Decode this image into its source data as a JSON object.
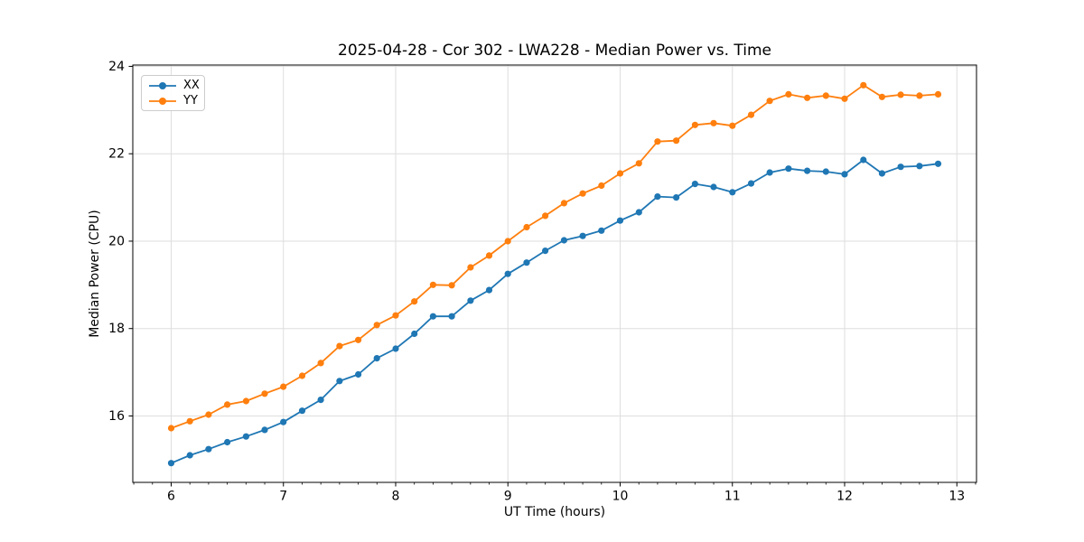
{
  "chart_data": {
    "type": "line",
    "title": "2025-04-28 - Cor 302 - LWA228 - Median Power vs. Time",
    "xlabel": "UT Time (hours)",
    "ylabel": "Median Power (CPU)",
    "xlim": [
      5.658,
      13.175
    ],
    "ylim": [
      14.48,
      24.03
    ],
    "x_major_ticks": [
      6,
      7,
      8,
      9,
      10,
      11,
      12,
      13
    ],
    "x_minor_tick_step_hours": 0.1667,
    "y_major_ticks": [
      16,
      18,
      20,
      22,
      24
    ],
    "grid": true,
    "grid_color": "#dedede",
    "legend_position": "upper left",
    "marker": "circle",
    "x": [
      6.0,
      6.167,
      6.333,
      6.5,
      6.667,
      6.833,
      7.0,
      7.167,
      7.333,
      7.5,
      7.667,
      7.833,
      8.0,
      8.167,
      8.333,
      8.5,
      8.667,
      8.833,
      9.0,
      9.167,
      9.333,
      9.5,
      9.667,
      9.833,
      10.0,
      10.167,
      10.333,
      10.5,
      10.667,
      10.833,
      11.0,
      11.167,
      11.333,
      11.5,
      11.667,
      11.833,
      12.0,
      12.167,
      12.333,
      12.5,
      12.667,
      12.833
    ],
    "series": [
      {
        "name": "XX",
        "color": "#1f77b4",
        "values": [
          14.92,
          15.1,
          15.24,
          15.4,
          15.53,
          15.68,
          15.86,
          16.12,
          16.37,
          16.8,
          16.95,
          17.32,
          17.54,
          17.88,
          18.28,
          18.28,
          18.64,
          18.88,
          19.25,
          19.51,
          19.78,
          20.02,
          20.12,
          20.24,
          20.47,
          20.66,
          21.02,
          21.0,
          21.31,
          21.24,
          21.12,
          21.32,
          21.57,
          21.66,
          21.61,
          21.59,
          21.53,
          21.86,
          21.55,
          21.7,
          21.72,
          21.77
        ]
      },
      {
        "name": "YY",
        "color": "#ff7f0e",
        "values": [
          15.72,
          15.88,
          16.03,
          16.26,
          16.34,
          16.51,
          16.67,
          16.92,
          17.21,
          17.6,
          17.74,
          18.08,
          18.3,
          18.62,
          19.0,
          18.99,
          19.4,
          19.67,
          20.0,
          20.32,
          20.58,
          20.87,
          21.09,
          21.27,
          21.55,
          21.78,
          22.28,
          22.3,
          22.66,
          22.7,
          22.64,
          22.89,
          23.21,
          23.36,
          23.28,
          23.33,
          23.26,
          23.57,
          23.3,
          23.35,
          23.33,
          23.36
        ]
      }
    ]
  }
}
